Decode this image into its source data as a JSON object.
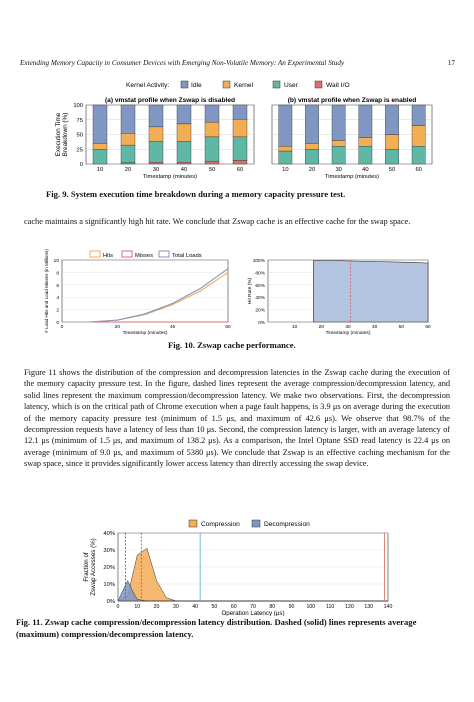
{
  "header": {
    "running_title": "Extending Memory Capacity in Consumer Devices with Emerging Non-Volatile Memory: An Experimental Study",
    "page_number": "17"
  },
  "fig9": {
    "caption": "Fig. 9.  System execution time breakdown during a memory capacity pressure test.",
    "legend_title": "Kernel Activity:",
    "colors": {
      "Idle": "#7f97c2",
      "Kernel": "#f2ad55",
      "User": "#5fb8a6",
      "Wait I/O": "#e86a6a"
    },
    "chart_data": [
      {
        "type": "bar",
        "title": "(a) vmstat profile when Zswap is disabled",
        "xlabel": "Timestamp (minutes)",
        "ylabel": "Execution Time Breakdown (%)",
        "ylim": [
          0,
          100
        ],
        "categories": [
          "10",
          "20",
          "30",
          "40",
          "50",
          "60"
        ],
        "series": [
          {
            "name": "Wait I/O",
            "values": [
              0,
              2,
              3,
              3,
              4,
              6
            ]
          },
          {
            "name": "User",
            "values": [
              25,
              30,
              35,
              35,
              42,
              40
            ]
          },
          {
            "name": "Kernel",
            "values": [
              10,
              20,
              25,
              30,
              25,
              30
            ]
          },
          {
            "name": "Idle",
            "values": [
              65,
              48,
              37,
              32,
              29,
              24
            ]
          }
        ],
        "yticks": [
          "0",
          "25",
          "50",
          "75",
          "100"
        ]
      },
      {
        "type": "bar",
        "title": "(b) vmstat profile when Zswap is enabled",
        "xlabel": "Timestamp (minutes)",
        "ylim": [
          0,
          100
        ],
        "categories": [
          "10",
          "20",
          "30",
          "40",
          "50",
          "60"
        ],
        "series": [
          {
            "name": "Wait I/O",
            "values": [
              0,
              0,
              0,
              0,
              0,
              0
            ]
          },
          {
            "name": "User",
            "values": [
              22,
              25,
              30,
              30,
              25,
              30
            ]
          },
          {
            "name": "Kernel",
            "values": [
              8,
              10,
              10,
              15,
              25,
              35
            ]
          },
          {
            "name": "Idle",
            "values": [
              70,
              65,
              60,
              55,
              50,
              35
            ]
          }
        ]
      }
    ]
  },
  "para1": "cache maintains a significantly high hit rate. We conclude that Zswap cache is an effective cache for the swap space.",
  "fig10": {
    "caption": "Fig. 10.  Zswap cache performance.",
    "colors": {
      "Hits": "#f2ad55",
      "Misses": "#e86a6a",
      "Total Loads": "#7f97c2"
    },
    "chart_data": [
      {
        "type": "line",
        "xlabel": "Timestamp (minutes)",
        "ylabel": "# Load Hits and Load Misses (in Millions)",
        "xlim": [
          0,
          60
        ],
        "ylim": [
          0,
          10
        ],
        "xticks": [
          "0",
          "20",
          "40",
          "60"
        ],
        "yticks": [
          "0",
          "2",
          "4",
          "6",
          "8",
          "10"
        ],
        "series": [
          {
            "name": "Hits",
            "x": [
              10,
              20,
              30,
              40,
              50,
              55,
              60
            ],
            "y": [
              0.0,
              0.3,
              1.2,
              2.8,
              5.0,
              6.5,
              8.0
            ]
          },
          {
            "name": "Misses",
            "x": [
              10,
              20,
              30,
              40,
              50,
              55,
              60
            ],
            "y": [
              0.0,
              0.0,
              0.0,
              0.0,
              0.0,
              0.0,
              0.0
            ]
          },
          {
            "name": "Total Loads",
            "x": [
              10,
              20,
              30,
              40,
              50,
              55,
              60
            ],
            "y": [
              0.0,
              0.3,
              1.3,
              3.0,
              5.4,
              7.0,
              8.6
            ]
          }
        ]
      },
      {
        "type": "area",
        "xlabel": "Timestamp (minutes)",
        "ylabel": "Hit Rate (%)",
        "xlim": [
          0,
          60
        ],
        "ylim": [
          0,
          100
        ],
        "xticks": [
          "10",
          "20",
          "30",
          "40",
          "50",
          "60"
        ],
        "yticks": [
          "0%",
          "20%",
          "40%",
          "60%",
          "80%",
          "100%"
        ],
        "series": [
          {
            "name": "Hit Rate",
            "x": [
              17,
              17,
              25,
              35,
              45,
              55,
              60
            ],
            "y": [
              0,
              99,
              99,
              98,
              97,
              96,
              95
            ]
          }
        ],
        "average_x": 31
      }
    ]
  },
  "para2": "Figure 11 shows the distribution of the compression and decompression latencies in the Zswap cache during the execution of the memory capacity pressure test. In the figure, dashed lines represent the average compression/decompression latency, and solid lines represent the maximum compression/decompression latency. We make two observations. First, the decompression latency, which is on the critical path of Chrome execution when a page fault happens, is 3.9 μs on average during the execution of the memory capacity pressure test (minimum of 1.5 μs, and maximum of 42.6 μs). We observe that 98.7% of the decompression requests have a latency of less than 10 μs. Second, the compression latency is larger, with an average latency of 12.1 μs (minimum of 1.5 μs, and maximum of 138.2 μs). As a comparison, the Intel Optane SSD read latency is 22.4 μs on average (minimum of 9.0 μs, and maximum of 5380 μs). We conclude that Zswap is an effective caching mechanism for the swap space, since it provides significantly lower access latency than directly accessing the swap device.",
  "fig11": {
    "caption": "Fig. 11.  Zswap cache compression/decompression latency distribution. Dashed (solid) lines represents average (maximum) compression/decompression latency.",
    "colors": {
      "Compression": "#f2ad55",
      "Decompression": "#7f97c2"
    },
    "chart_data": {
      "type": "area",
      "xlabel": "Operation Latency (μs)",
      "ylabel": "Fraction of Zswap Accesses (%)",
      "xlim": [
        0,
        140
      ],
      "ylim": [
        0,
        40
      ],
      "xticks": [
        "0",
        "10",
        "20",
        "30",
        "40",
        "50",
        "60",
        "70",
        "80",
        "90",
        "100",
        "110",
        "120",
        "130",
        "140"
      ],
      "yticks": [
        "0%",
        "10%",
        "20%",
        "30%",
        "40%"
      ],
      "series": [
        {
          "name": "Compression",
          "x": [
            0,
            5,
            10,
            15,
            20,
            25,
            30,
            140
          ],
          "y": [
            0,
            3,
            27,
            31,
            12,
            2,
            0,
            0
          ]
        },
        {
          "name": "Decompression",
          "x": [
            0,
            2,
            5,
            8,
            10,
            15,
            140
          ],
          "y": [
            0,
            5,
            12,
            5,
            1,
            0,
            0
          ]
        }
      ],
      "compression_avg": 12.1,
      "compression_max": 138.2,
      "decompression_avg": 3.9,
      "decompression_max": 42.6
    }
  }
}
